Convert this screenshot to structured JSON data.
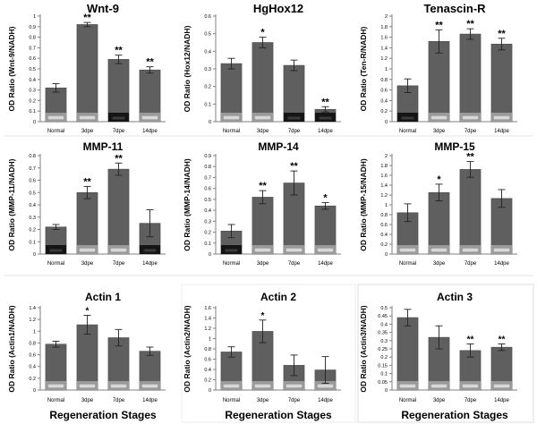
{
  "figure": {
    "x_axis_title": "Regeneration Stages",
    "colors": {
      "bar": "#5f5f5f",
      "bar_edge": "#4a4a4a",
      "axis": "#808080",
      "band_light": "#d8d8d8",
      "band_dark": "#151515",
      "panel_border": "#cfcfcf"
    }
  },
  "chart_data": [
    {
      "type": "bar",
      "title": "Wnt-9",
      "ylabel": "OD Ratio (Wnt-9/NADH)",
      "categories": [
        "Normal",
        "3dpe",
        "7dpe",
        "14dpe"
      ],
      "values": [
        0.32,
        0.92,
        0.59,
        0.49
      ],
      "errors": [
        0.04,
        0.02,
        0.04,
        0.03
      ],
      "significance": [
        "",
        "**",
        "**",
        "**"
      ],
      "ylim": [
        0,
        1
      ],
      "yticks": [
        "0",
        "0.1",
        "0.2",
        "0.3",
        "0.4",
        "0.5",
        "0.6",
        "0.7",
        "0.8",
        "0.9",
        "1"
      ],
      "band_style": [
        "light",
        "light",
        "dark",
        "light"
      ]
    },
    {
      "type": "bar",
      "title": "HgHox12",
      "ylabel": "OD Ratio (Hox12/NADH)",
      "categories": [
        "Normal",
        "3dpe",
        "7dpe",
        "14dpe"
      ],
      "values": [
        0.33,
        0.45,
        0.32,
        0.07
      ],
      "errors": [
        0.03,
        0.03,
        0.03,
        0.015
      ],
      "significance": [
        "",
        "*",
        "",
        "**"
      ],
      "ylim": [
        0,
        0.6
      ],
      "yticks": [
        "0",
        "0.1",
        "0.2",
        "0.3",
        "0.4",
        "0.5",
        "0.6"
      ],
      "band_style": [
        "light",
        "light",
        "dark",
        "dark"
      ]
    },
    {
      "type": "bar",
      "title": "Tenascin-R",
      "ylabel": "OD Ratio  (Ten-R/NADH)",
      "categories": [
        "Normal",
        "3dpe",
        "7dpe",
        "14dpe"
      ],
      "values": [
        0.68,
        1.52,
        1.66,
        1.47
      ],
      "errors": [
        0.13,
        0.22,
        0.1,
        0.11
      ],
      "significance": [
        "",
        "**",
        "**",
        "**"
      ],
      "ylim": [
        0,
        2
      ],
      "yticks": [
        "0",
        "0.2",
        "0.4",
        "0.6",
        "0.8",
        "1",
        "1.2",
        "1.4",
        "1.6",
        "1.8",
        "2"
      ],
      "band_style": [
        "dark",
        "light",
        "light",
        "light"
      ]
    },
    {
      "type": "bar",
      "title": "MMP-11",
      "ylabel": "OD Ratio  (MMP-11/NADH)",
      "categories": [
        "Normal",
        "3dpe",
        "7dpe",
        "14dpe"
      ],
      "values": [
        0.22,
        0.5,
        0.69,
        0.25
      ],
      "errors": [
        0.02,
        0.05,
        0.05,
        0.11
      ],
      "significance": [
        "",
        "**",
        "**",
        ""
      ],
      "ylim": [
        0,
        0.8
      ],
      "yticks": [
        "0",
        "0.1",
        "0.2",
        "0.3",
        "0.4",
        "0.5",
        "0.6",
        "0.7",
        "0.8"
      ],
      "band_style": [
        "dark",
        "light",
        "light",
        "dark"
      ]
    },
    {
      "type": "bar",
      "title": "MMP-14",
      "ylabel": "OD Ratio  (MMP-14/NADH)",
      "categories": [
        "Normal",
        "3dpe",
        "7dpe",
        "14dpe"
      ],
      "values": [
        0.21,
        0.52,
        0.65,
        0.44
      ],
      "errors": [
        0.06,
        0.06,
        0.11,
        0.03
      ],
      "significance": [
        "",
        "**",
        "**",
        "*"
      ],
      "ylim": [
        0,
        0.9
      ],
      "yticks": [
        "0",
        "0.1",
        "0.2",
        "0.3",
        "0.4",
        "0.5",
        "0.6",
        "0.7",
        "0.8",
        "0.9"
      ],
      "band_style": [
        "dark",
        "light",
        "light",
        "light"
      ]
    },
    {
      "type": "bar",
      "title": "MMP-15",
      "ylabel": "OD Ratio  (MMP-15/NADH)",
      "categories": [
        "Normal",
        "3dpe",
        "7dpe",
        "14dpe"
      ],
      "values": [
        0.84,
        1.25,
        1.72,
        1.13
      ],
      "errors": [
        0.18,
        0.17,
        0.16,
        0.18
      ],
      "significance": [
        "",
        "*",
        "**",
        ""
      ],
      "ylim": [
        0,
        2
      ],
      "yticks": [
        "0",
        "0.2",
        "0.4",
        "0.6",
        "0.8",
        "1",
        "1.2",
        "1.4",
        "1.6",
        "1.8",
        "2"
      ],
      "band_style": [
        "light",
        "light",
        "light",
        "light"
      ]
    },
    {
      "type": "bar",
      "title": "Actin 1",
      "ylabel": "OD Ratio (Actin1/NADH)",
      "categories": [
        "Normal",
        "3dpe",
        "7dpe",
        "14dpe"
      ],
      "values": [
        0.78,
        1.11,
        0.89,
        0.66
      ],
      "errors": [
        0.05,
        0.16,
        0.14,
        0.07
      ],
      "significance": [
        "",
        "*",
        "",
        ""
      ],
      "ylim": [
        0,
        1.4
      ],
      "yticks": [
        "0",
        "0.2",
        "0.4",
        "0.6",
        "0.8",
        "1",
        "1.2",
        "1.4"
      ],
      "band_style": [
        "light",
        "light",
        "light",
        "light"
      ]
    },
    {
      "type": "bar",
      "title": "Actin 2",
      "ylabel": "OD Ratio (Actin2/NADH)",
      "categories": [
        "Normal",
        "3dpe",
        "7dpe",
        "14dpe"
      ],
      "values": [
        0.74,
        1.14,
        0.48,
        0.39
      ],
      "errors": [
        0.1,
        0.22,
        0.2,
        0.26
      ],
      "significance": [
        "",
        "*",
        "",
        ""
      ],
      "ylim": [
        0,
        1.6
      ],
      "yticks": [
        "0",
        "0.2",
        "0.4",
        "0.6",
        "0.8",
        "1",
        "1.2",
        "1.4",
        "1.6"
      ],
      "band_style": [
        "light",
        "light",
        "light",
        "light"
      ]
    },
    {
      "type": "bar",
      "title": "Actin 3",
      "ylabel": "OD Ratio (Actin3/NADH)",
      "categories": [
        "Normal",
        "3dpe",
        "7dpe",
        "14dpe"
      ],
      "values": [
        0.44,
        0.32,
        0.24,
        0.26
      ],
      "errors": [
        0.05,
        0.07,
        0.04,
        0.02
      ],
      "significance": [
        "",
        "",
        "**",
        "**"
      ],
      "ylim": [
        0,
        0.5
      ],
      "yticks": [
        "0",
        "0.05",
        "0.1",
        "0.15",
        "0.2",
        "0.25",
        "0.3",
        "0.35",
        "0.4",
        "0.45",
        "0.5"
      ],
      "band_style": [
        "light",
        "light",
        "light",
        "light"
      ]
    }
  ]
}
